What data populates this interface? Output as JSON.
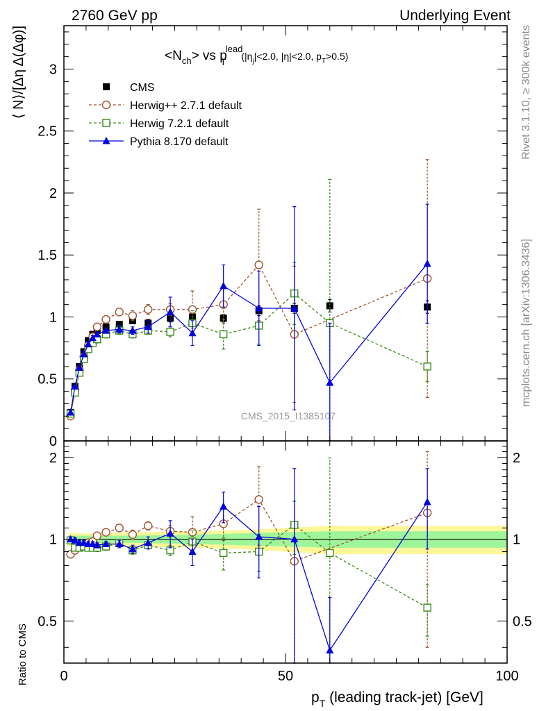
{
  "header": {
    "left": "2760 GeV pp",
    "right": "Underlying Event"
  },
  "side_labels": {
    "rivet": "Rivet 3.1.10, ≥ 300k events",
    "mcplots": "mcplots.cern.ch [arXiv:1306.3436]"
  },
  "watermark": "CMS_2015_I1385107",
  "colors": {
    "cms": "#000000",
    "herwigpp": "#a0522d",
    "herwig7": "#3a8a1a",
    "pythia": "#0000e0",
    "band_outer": "#fbf79a",
    "band_inner": "#9ff59a"
  },
  "chart_data": [
    {
      "type": "scatter",
      "title": "<N_ch> vs p_T^lead (|η_j|<2.0, |η|<2.0, p_T>0.5)",
      "title_parts": {
        "main": "<N",
        "sub1": "ch",
        "mid": "> vs p",
        "sup": "lead",
        "sub2": "T",
        "cuts": "(|η",
        "cuts_sub": "j",
        "cuts_rest": "|<2.0, |η|<2.0, p",
        "cuts_sub2": "T",
        "cuts_end": ">0.5)"
      },
      "ylabel": "⟨ N⟩/[Δη Δ(Δφ)]",
      "xlim": [
        0,
        100
      ],
      "ylim": [
        0,
        3.35
      ],
      "yticks": [
        0,
        0.5,
        1,
        1.5,
        2,
        2.5,
        3
      ],
      "ytick_labels": [
        "0",
        "0.5",
        "1",
        "1.5",
        "2",
        "2.5",
        "3"
      ],
      "legend_position": "top-left",
      "series": [
        {
          "name": "CMS",
          "style": "data",
          "x": [
            1.5,
            2.5,
            3.5,
            4.5,
            5.5,
            6.5,
            7.5,
            9.5,
            12.5,
            15.5,
            19,
            24,
            29,
            36,
            44,
            52,
            60,
            82
          ],
          "y": [
            0.23,
            0.44,
            0.6,
            0.72,
            0.81,
            0.86,
            0.89,
            0.92,
            0.94,
            0.97,
            0.95,
            0.99,
            1.0,
            0.99,
            1.05,
            1.07,
            1.09,
            1.08
          ],
          "err": [
            0.02,
            0.02,
            0.02,
            0.02,
            0.02,
            0.02,
            0.02,
            0.02,
            0.02,
            0.02,
            0.03,
            0.03,
            0.03,
            0.03,
            0.04,
            0.04,
            0.05,
            0.05
          ]
        },
        {
          "name": "Herwig++ 2.7.1 default",
          "style": "herwigpp",
          "x": [
            1.5,
            2.5,
            3.5,
            4.5,
            5.5,
            6.5,
            7.5,
            9.5,
            12.5,
            15.5,
            19,
            24,
            29,
            36,
            44,
            52,
            82
          ],
          "y": [
            0.2,
            0.41,
            0.57,
            0.68,
            0.77,
            0.84,
            0.92,
            0.98,
            1.04,
            1.01,
            1.06,
            1.06,
            1.06,
            1.1,
            1.42,
            0.86,
            1.31
          ],
          "err": [
            0.02,
            0.02,
            0.02,
            0.02,
            0.02,
            0.03,
            0.03,
            0.03,
            0.03,
            0.04,
            0.04,
            0.05,
            0.15,
            0.15,
            0.45,
            0.55,
            0.96
          ]
        },
        {
          "name": "Herwig 7.2.1 default",
          "style": "herwig7",
          "x": [
            1.5,
            2.5,
            3.5,
            4.5,
            5.5,
            6.5,
            7.5,
            9.5,
            12.5,
            15.5,
            19,
            24,
            29,
            36,
            44,
            52,
            60,
            82
          ],
          "y": [
            0.22,
            0.39,
            0.55,
            0.66,
            0.74,
            0.79,
            0.82,
            0.86,
            0.89,
            0.86,
            0.89,
            0.88,
            0.95,
            0.86,
            0.93,
            1.19,
            0.95,
            0.6
          ],
          "err": [
            0.02,
            0.02,
            0.02,
            0.02,
            0.02,
            0.02,
            0.03,
            0.03,
            0.03,
            0.03,
            0.03,
            0.04,
            0.1,
            0.12,
            0.15,
            0.25,
            1.16,
            0.12
          ]
        },
        {
          "name": "Pythia 8.170 default",
          "style": "pythia",
          "x": [
            1.5,
            2.5,
            3.5,
            4.5,
            5.5,
            6.5,
            7.5,
            9.5,
            12.5,
            15.5,
            19,
            24,
            29,
            36,
            44,
            52,
            60,
            82
          ],
          "y": [
            0.23,
            0.44,
            0.59,
            0.7,
            0.78,
            0.83,
            0.86,
            0.89,
            0.9,
            0.89,
            0.92,
            1.04,
            0.87,
            1.25,
            1.07,
            1.07,
            0.47,
            1.43
          ],
          "err": [
            0.02,
            0.02,
            0.02,
            0.02,
            0.02,
            0.02,
            0.02,
            0.02,
            0.03,
            0.03,
            0.05,
            0.12,
            0.1,
            0.17,
            0.3,
            0.82,
            0.48,
            0.48
          ]
        }
      ]
    },
    {
      "type": "scatter",
      "ylabel": "Ratio to CMS",
      "xlabel": "p_T (leading track-jet) [GeV]",
      "xlabel_parts": {
        "p": "p",
        "sub": "T",
        "rest": " (leading track-jet) [GeV]"
      },
      "xlim": [
        0,
        100
      ],
      "ylim": [
        0.35,
        2.3
      ],
      "xticks": [
        0,
        50,
        100
      ],
      "xtick_labels": [
        "0",
        "50",
        "100"
      ],
      "yticks": [
        0.5,
        1,
        2
      ],
      "ytick_labels": [
        "0.5",
        "1",
        "2"
      ],
      "band": {
        "x": [
          1,
          4,
          8,
          15,
          30,
          40,
          50,
          60,
          100
        ],
        "outer": [
          0.06,
          0.05,
          0.05,
          0.06,
          0.07,
          0.08,
          0.1,
          0.12,
          0.12
        ],
        "inner": [
          0.03,
          0.03,
          0.03,
          0.03,
          0.04,
          0.05,
          0.06,
          0.07,
          0.07
        ]
      },
      "series": [
        {
          "name": "Herwig++ 2.7.1 default",
          "style": "herwigpp",
          "x": [
            1.5,
            2.5,
            3.5,
            4.5,
            5.5,
            6.5,
            7.5,
            9.5,
            12.5,
            15.5,
            19,
            24,
            29,
            36,
            44,
            52,
            82
          ],
          "y": [
            0.88,
            0.91,
            0.94,
            0.95,
            0.97,
            0.98,
            1.03,
            1.06,
            1.1,
            1.04,
            1.12,
            1.07,
            1.06,
            1.14,
            1.4,
            0.83,
            1.25
          ],
          "err": [
            0.02,
            0.02,
            0.02,
            0.02,
            0.02,
            0.03,
            0.03,
            0.03,
            0.03,
            0.04,
            0.04,
            0.05,
            0.15,
            0.15,
            0.45,
            0.55,
            0.85
          ]
        },
        {
          "name": "Herwig 7.2.1 default",
          "style": "herwig7",
          "x": [
            1.5,
            2.5,
            3.5,
            4.5,
            5.5,
            6.5,
            7.5,
            9.5,
            12.5,
            15.5,
            19,
            24,
            29,
            36,
            44,
            52,
            60,
            82
          ],
          "y": [
            0.99,
            0.93,
            0.93,
            0.94,
            0.93,
            0.93,
            0.93,
            0.94,
            0.97,
            0.91,
            0.95,
            0.91,
            0.98,
            0.89,
            0.9,
            1.13,
            0.89,
            0.56
          ],
          "err": [
            0.02,
            0.02,
            0.02,
            0.02,
            0.02,
            0.02,
            0.03,
            0.03,
            0.03,
            0.03,
            0.03,
            0.04,
            0.1,
            0.12,
            0.14,
            0.25,
            1.1,
            0.12
          ]
        },
        {
          "name": "Pythia 8.170 default",
          "style": "pythia",
          "x": [
            1.5,
            2.5,
            3.5,
            4.5,
            5.5,
            6.5,
            7.5,
            9.5,
            12.5,
            15.5,
            19,
            24,
            29,
            36,
            44,
            52,
            60,
            82
          ],
          "y": [
            1.0,
            0.99,
            0.97,
            0.97,
            0.96,
            0.96,
            0.95,
            0.96,
            0.96,
            0.92,
            0.97,
            1.05,
            0.9,
            1.32,
            1.02,
            1.0,
            0.39,
            1.37
          ],
          "err": [
            0.02,
            0.02,
            0.02,
            0.02,
            0.02,
            0.02,
            0.02,
            0.02,
            0.03,
            0.03,
            0.05,
            0.12,
            0.1,
            0.17,
            0.3,
            0.82,
            0.22,
            0.45
          ]
        }
      ]
    }
  ]
}
